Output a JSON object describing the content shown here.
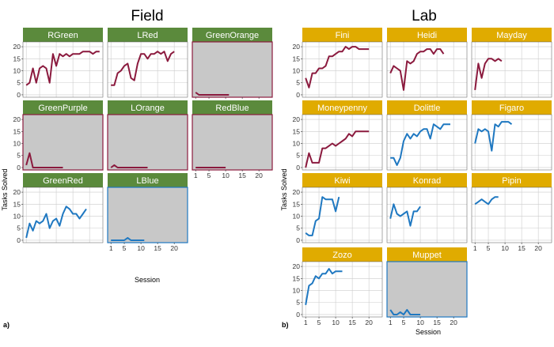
{
  "figure": {
    "field_title": "Field",
    "lab_title": "Lab",
    "field_panel_label": "a)",
    "lab_panel_label": "b)",
    "ylabel": "Tasks Solved",
    "field_xlabel": "Session",
    "lab_xlabel": "Session"
  },
  "colors": {
    "strip_field": "#5b8a3c",
    "strip_lab": "#e0ab00",
    "line_red": "#8b1a3e",
    "line_blue": "#1f78c1",
    "empty_bg": "#c8c8c8",
    "grid": "#cccccc"
  },
  "chart_data": [
    {
      "group": "Field",
      "type": "line",
      "x_ticks": [
        1,
        5,
        10,
        15,
        20
      ],
      "y_ticks": [
        0,
        5,
        10,
        15,
        20
      ],
      "xlim": [
        0,
        24
      ],
      "ylim": [
        -1,
        22
      ],
      "panels": [
        {
          "name": "RGreen",
          "color": "red",
          "empty": false,
          "x": [
            1,
            2,
            3,
            4,
            5,
            6,
            7,
            8,
            9,
            10,
            11,
            12,
            13,
            14,
            15,
            16,
            17,
            18,
            19,
            20,
            21,
            22,
            23
          ],
          "y": [
            4,
            5,
            11,
            5,
            11,
            12,
            11,
            5,
            17,
            12,
            17,
            16,
            17,
            16,
            17,
            17,
            17,
            18,
            18,
            18,
            17,
            18,
            18
          ]
        },
        {
          "name": "LRed",
          "color": "red",
          "empty": false,
          "x": [
            1,
            2,
            3,
            4,
            5,
            6,
            7,
            8,
            9,
            10,
            11,
            12,
            13,
            14,
            15,
            16,
            17,
            18,
            19,
            20
          ],
          "y": [
            4,
            4,
            9,
            10,
            12,
            13,
            7,
            6,
            13,
            17,
            17,
            15,
            17,
            17,
            18,
            17,
            18,
            14,
            17,
            18
          ]
        },
        {
          "name": "GreenOrange",
          "color": "red",
          "empty": true,
          "x": [
            1,
            2,
            3,
            4,
            5,
            6,
            7,
            8,
            9,
            10,
            11
          ],
          "y": [
            1,
            0,
            0,
            0,
            0,
            0,
            0,
            0,
            0,
            0,
            0
          ]
        },
        {
          "name": "GreenPurple",
          "color": "red",
          "empty": true,
          "x": [
            1,
            2,
            3,
            4,
            5,
            6,
            7,
            8,
            9,
            10,
            11,
            12
          ],
          "y": [
            1,
            6,
            0,
            0,
            0,
            0,
            0,
            0,
            0,
            0,
            0,
            0
          ]
        },
        {
          "name": "LOrange",
          "color": "red",
          "empty": true,
          "x": [
            1,
            2,
            3,
            4,
            5,
            6,
            7,
            8,
            9,
            10,
            11,
            12
          ],
          "y": [
            0,
            1,
            0,
            0,
            0,
            0,
            0,
            0,
            0,
            0,
            0,
            0
          ]
        },
        {
          "name": "RedBlue",
          "color": "red",
          "empty": true,
          "x": [
            1,
            2,
            3,
            4,
            5,
            6,
            7,
            8,
            9,
            10
          ],
          "y": [
            0,
            0,
            0,
            0,
            0,
            0,
            0,
            0,
            0,
            0
          ]
        },
        {
          "name": "GreenRed",
          "color": "blue",
          "empty": false,
          "x": [
            1,
            2,
            3,
            4,
            5,
            6,
            7,
            8,
            9,
            10,
            11,
            12,
            13,
            14,
            15,
            16,
            17,
            18,
            19
          ],
          "y": [
            1,
            7,
            4,
            8,
            7,
            8,
            11,
            5,
            8,
            9,
            6,
            11,
            14,
            13,
            11,
            11,
            9,
            11,
            13
          ]
        },
        {
          "name": "LBlue",
          "color": "blue",
          "empty": true,
          "x": [
            1,
            2,
            3,
            4,
            5,
            6,
            7,
            8,
            9,
            10,
            11
          ],
          "y": [
            0,
            0,
            0,
            0,
            0,
            1,
            0,
            0,
            0,
            0,
            0
          ]
        }
      ]
    },
    {
      "group": "Lab",
      "type": "line",
      "x_ticks": [
        1,
        5,
        10,
        15,
        20
      ],
      "y_ticks": [
        0,
        5,
        10,
        15,
        20
      ],
      "xlim": [
        0,
        24
      ],
      "ylim": [
        -1,
        22
      ],
      "panels": [
        {
          "name": "Fini",
          "color": "red",
          "empty": false,
          "x": [
            1,
            2,
            3,
            4,
            5,
            6,
            7,
            8,
            9,
            10,
            11,
            12,
            13,
            14,
            15,
            16,
            17,
            18,
            19,
            20
          ],
          "y": [
            7,
            3,
            9,
            9,
            11,
            11,
            12,
            16,
            16,
            17,
            18,
            18,
            20,
            19,
            20,
            20,
            19,
            19,
            19,
            19
          ]
        },
        {
          "name": "Heidi",
          "color": "red",
          "empty": false,
          "x": [
            1,
            2,
            3,
            4,
            5,
            6,
            7,
            8,
            9,
            10,
            11,
            12,
            13,
            14,
            15,
            16,
            17
          ],
          "y": [
            9,
            12,
            11,
            10,
            2,
            14,
            13,
            14,
            17,
            18,
            18,
            19,
            19,
            17,
            19,
            19,
            17
          ]
        },
        {
          "name": "Mayday",
          "color": "red",
          "empty": false,
          "x": [
            1,
            2,
            3,
            4,
            5,
            6,
            7,
            8,
            9
          ],
          "y": [
            2,
            13,
            7,
            13,
            15,
            15,
            14,
            15,
            14
          ]
        },
        {
          "name": "Moneypenny",
          "color": "red",
          "empty": false,
          "x": [
            1,
            2,
            3,
            4,
            5,
            6,
            7,
            8,
            9,
            10,
            11,
            12,
            13,
            14,
            15,
            16,
            17,
            18,
            19,
            20
          ],
          "y": [
            0,
            6,
            2,
            2,
            2,
            8,
            8,
            9,
            10,
            9,
            10,
            11,
            12,
            14,
            13,
            15,
            15,
            15,
            15,
            15
          ]
        },
        {
          "name": "Dolittle",
          "color": "blue",
          "empty": false,
          "x": [
            1,
            2,
            3,
            4,
            5,
            6,
            7,
            8,
            9,
            10,
            11,
            12,
            13,
            14,
            15,
            16,
            17,
            18,
            19
          ],
          "y": [
            4,
            4,
            1,
            4,
            11,
            14,
            12,
            14,
            13,
            15,
            16,
            16,
            12,
            18,
            17,
            16,
            18,
            18,
            18
          ]
        },
        {
          "name": "Figaro",
          "color": "blue",
          "empty": false,
          "x": [
            1,
            2,
            3,
            4,
            5,
            6,
            7,
            8,
            9,
            10,
            11,
            12
          ],
          "y": [
            10,
            16,
            15,
            16,
            15,
            7,
            18,
            17,
            19,
            19,
            19,
            18
          ]
        },
        {
          "name": "Kiwi",
          "color": "blue",
          "empty": false,
          "x": [
            1,
            2,
            3,
            4,
            5,
            6,
            7,
            8,
            9,
            10,
            11
          ],
          "y": [
            3,
            2,
            2,
            8,
            9,
            18,
            17,
            17,
            17,
            12,
            18
          ]
        },
        {
          "name": "Konrad",
          "color": "blue",
          "empty": false,
          "x": [
            1,
            2,
            3,
            4,
            5,
            6,
            7,
            8,
            9,
            10
          ],
          "y": [
            9,
            15,
            11,
            10,
            11,
            12,
            6,
            12,
            12,
            14
          ]
        },
        {
          "name": "Pipin",
          "color": "blue",
          "empty": false,
          "x": [
            1,
            2,
            3,
            4,
            5,
            6,
            7,
            8
          ],
          "y": [
            15,
            16,
            17,
            16,
            15,
            17,
            18,
            18
          ]
        },
        {
          "name": "Zozo",
          "color": "blue",
          "empty": false,
          "x": [
            1,
            2,
            3,
            4,
            5,
            6,
            7,
            8,
            9,
            10,
            11,
            12
          ],
          "y": [
            4,
            12,
            13,
            16,
            15,
            17,
            17,
            19,
            17,
            18,
            18,
            18
          ]
        },
        {
          "name": "Muppet",
          "color": "blue",
          "empty": true,
          "x": [
            1,
            2,
            3,
            4,
            5,
            6,
            7,
            8,
            9,
            10
          ],
          "y": [
            2,
            0,
            0,
            1,
            0,
            2,
            0,
            0,
            0,
            0
          ]
        }
      ]
    }
  ]
}
